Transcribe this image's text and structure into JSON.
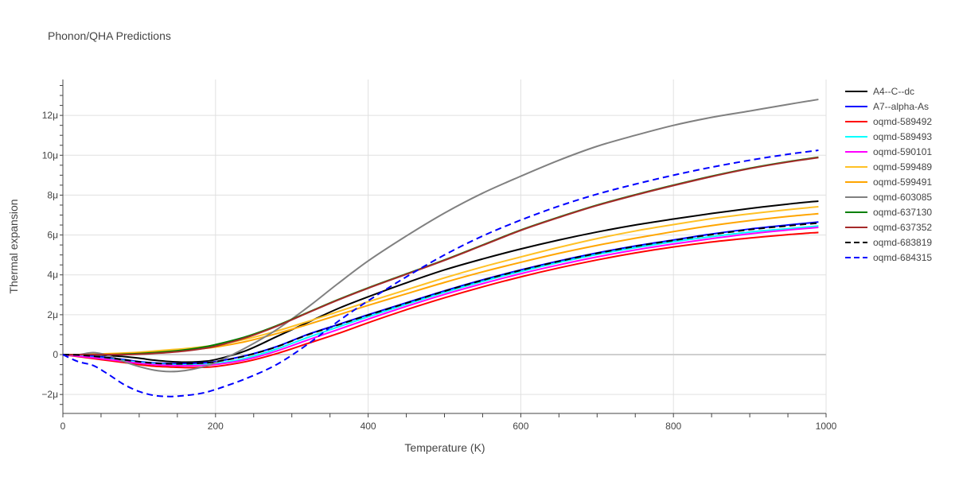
{
  "chart_data": {
    "type": "line",
    "title": "Phonon/QHA Predictions",
    "xlabel": "Temperature (K)",
    "ylabel": "Thermal expansion",
    "xlim": [
      0,
      1000
    ],
    "ylim": [
      -2.95,
      13.8
    ],
    "x_ticks": [
      0,
      200,
      400,
      600,
      800,
      1000
    ],
    "x_tick_labels": [
      "0",
      "200",
      "400",
      "600",
      "800",
      "1000"
    ],
    "y_ticks": [
      -2,
      0,
      2,
      4,
      6,
      8,
      10,
      12
    ],
    "y_tick_labels": [
      "−2μ",
      "0",
      "2μ",
      "4μ",
      "6μ",
      "8μ",
      "10μ",
      "12μ"
    ],
    "y_unit_scale": "1e-6",
    "grid": true,
    "legend_position": "right",
    "x": [
      0,
      20,
      40,
      60,
      80,
      100,
      120,
      140,
      160,
      180,
      200,
      240,
      280,
      320,
      360,
      400,
      450,
      500,
      550,
      600,
      650,
      700,
      750,
      800,
      850,
      900,
      950,
      990
    ],
    "series": [
      {
        "name": "A4--C--dc",
        "color": "#000000",
        "dash": "solid",
        "values": [
          0,
          0,
          0,
          -0.05,
          -0.1,
          -0.18,
          -0.28,
          -0.35,
          -0.38,
          -0.35,
          -0.25,
          0.2,
          0.9,
          1.6,
          2.3,
          2.9,
          3.6,
          4.25,
          4.8,
          5.3,
          5.75,
          6.15,
          6.5,
          6.8,
          7.08,
          7.33,
          7.55,
          7.7
        ]
      },
      {
        "name": "A7--alpha-As",
        "color": "#0000ff",
        "dash": "solid",
        "values": [
          0,
          -0.02,
          -0.08,
          -0.15,
          -0.25,
          -0.35,
          -0.42,
          -0.45,
          -0.45,
          -0.42,
          -0.35,
          -0.05,
          0.4,
          1.0,
          1.5,
          2.0,
          2.6,
          3.2,
          3.75,
          4.25,
          4.7,
          5.1,
          5.45,
          5.75,
          6.05,
          6.3,
          6.5,
          6.65
        ]
      },
      {
        "name": "oqmd-589492",
        "color": "#ff0000",
        "dash": "solid",
        "values": [
          0,
          -0.1,
          -0.2,
          -0.3,
          -0.4,
          -0.5,
          -0.58,
          -0.62,
          -0.65,
          -0.64,
          -0.6,
          -0.35,
          0.05,
          0.55,
          1.05,
          1.6,
          2.25,
          2.85,
          3.4,
          3.9,
          4.35,
          4.75,
          5.1,
          5.4,
          5.65,
          5.85,
          6.02,
          6.13
        ]
      },
      {
        "name": "oqmd-589493",
        "color": "#00ffff",
        "dash": "solid",
        "values": [
          0,
          -0.06,
          -0.14,
          -0.22,
          -0.3,
          -0.39,
          -0.46,
          -0.5,
          -0.52,
          -0.5,
          -0.45,
          -0.18,
          0.28,
          0.85,
          1.38,
          1.9,
          2.52,
          3.12,
          3.67,
          4.17,
          4.62,
          5.02,
          5.36,
          5.66,
          5.92,
          6.15,
          6.32,
          6.45
        ]
      },
      {
        "name": "oqmd-590101",
        "color": "#ff00ff",
        "dash": "solid",
        "values": [
          0,
          -0.08,
          -0.16,
          -0.25,
          -0.34,
          -0.43,
          -0.5,
          -0.54,
          -0.56,
          -0.54,
          -0.5,
          -0.25,
          0.18,
          0.72,
          1.25,
          1.78,
          2.42,
          3.02,
          3.56,
          4.06,
          4.5,
          4.9,
          5.25,
          5.55,
          5.82,
          6.06,
          6.25,
          6.38
        ]
      },
      {
        "name": "oqmd-599489",
        "color": "#ffc125",
        "dash": "solid",
        "values": [
          0,
          0,
          0.02,
          0.05,
          0.08,
          0.12,
          0.18,
          0.24,
          0.3,
          0.38,
          0.48,
          0.78,
          1.18,
          1.65,
          2.15,
          2.65,
          3.25,
          3.85,
          4.4,
          4.9,
          5.38,
          5.82,
          6.2,
          6.52,
          6.82,
          7.06,
          7.27,
          7.42
        ]
      },
      {
        "name": "oqmd-599491",
        "color": "#ffa500",
        "dash": "solid",
        "values": [
          0,
          0,
          0.01,
          0.03,
          0.05,
          0.08,
          0.12,
          0.17,
          0.22,
          0.29,
          0.38,
          0.66,
          1.05,
          1.5,
          1.98,
          2.47,
          3.05,
          3.62,
          4.15,
          4.63,
          5.08,
          5.48,
          5.84,
          6.17,
          6.47,
          6.72,
          6.93,
          7.07
        ]
      },
      {
        "name": "oqmd-603085",
        "color": "#808080",
        "dash": "solid",
        "values": [
          0,
          0,
          0.1,
          -0.05,
          -0.35,
          -0.6,
          -0.78,
          -0.85,
          -0.8,
          -0.65,
          -0.4,
          0.35,
          1.25,
          2.35,
          3.55,
          4.7,
          5.95,
          7.1,
          8.1,
          8.95,
          9.75,
          10.45,
          11.0,
          11.5,
          11.9,
          12.22,
          12.55,
          12.8
        ]
      },
      {
        "name": "oqmd-637130",
        "color": "#008000",
        "dash": "solid",
        "values": [
          0,
          0,
          0,
          0,
          0.02,
          0.05,
          0.1,
          0.16,
          0.24,
          0.35,
          0.5,
          0.9,
          1.45,
          2.1,
          2.75,
          3.35,
          4.05,
          4.75,
          5.5,
          6.25,
          6.9,
          7.5,
          8.02,
          8.5,
          8.95,
          9.35,
          9.68,
          9.9
        ]
      },
      {
        "name": "oqmd-637352",
        "color": "#a52a2a",
        "dash": "solid",
        "values": [
          0,
          0,
          0,
          0,
          0,
          0.02,
          0.06,
          0.11,
          0.18,
          0.28,
          0.42,
          0.85,
          1.42,
          2.08,
          2.73,
          3.33,
          4.03,
          4.73,
          5.48,
          6.23,
          6.88,
          7.48,
          8.0,
          8.48,
          8.93,
          9.33,
          9.66,
          9.88
        ]
      },
      {
        "name": "oqmd-683819",
        "color": "#000000",
        "dash": "dash",
        "values": [
          0,
          -0.02,
          -0.08,
          -0.16,
          -0.26,
          -0.36,
          -0.43,
          -0.46,
          -0.46,
          -0.43,
          -0.36,
          -0.06,
          0.39,
          0.98,
          1.48,
          1.98,
          2.58,
          3.18,
          3.73,
          4.23,
          4.68,
          5.08,
          5.43,
          5.73,
          6.02,
          6.27,
          6.46,
          6.6
        ]
      },
      {
        "name": "oqmd-684315",
        "color": "#0000ff",
        "dash": "dash",
        "values": [
          0,
          -0.35,
          -0.55,
          -1.0,
          -1.5,
          -1.85,
          -2.05,
          -2.1,
          -2.05,
          -1.95,
          -1.75,
          -1.2,
          -0.5,
          0.5,
          1.65,
          2.7,
          3.9,
          5.0,
          5.95,
          6.75,
          7.45,
          8.05,
          8.55,
          9.0,
          9.4,
          9.75,
          10.05,
          10.25
        ]
      }
    ]
  }
}
